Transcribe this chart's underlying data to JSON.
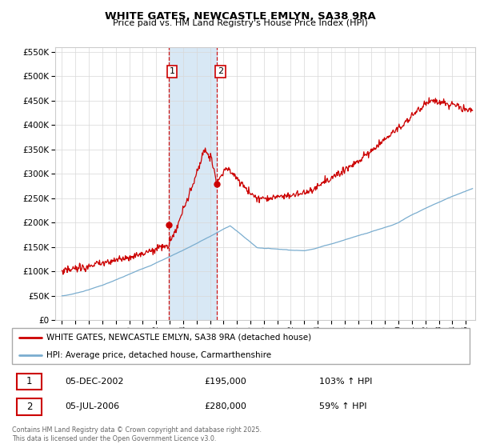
{
  "title": "WHITE GATES, NEWCASTLE EMLYN, SA38 9RA",
  "subtitle": "Price paid vs. HM Land Registry's House Price Index (HPI)",
  "legend_line1": "WHITE GATES, NEWCASTLE EMLYN, SA38 9RA (detached house)",
  "legend_line2": "HPI: Average price, detached house, Carmarthenshire",
  "transaction1_date": "05-DEC-2002",
  "transaction1_price": "£195,000",
  "transaction1_hpi": "103% ↑ HPI",
  "transaction2_date": "05-JUL-2006",
  "transaction2_price": "£280,000",
  "transaction2_hpi": "59% ↑ HPI",
  "copyright_text": "Contains HM Land Registry data © Crown copyright and database right 2025.\nThis data is licensed under the Open Government Licence v3.0.",
  "red_color": "#cc0000",
  "blue_color": "#7aadcf",
  "highlight_color": "#d8e8f5",
  "transaction1_x": 2002.92,
  "transaction2_x": 2006.5,
  "ylim_max": 560000,
  "ylim_min": 0,
  "xlim_min": 1994.5,
  "xlim_max": 2025.7
}
